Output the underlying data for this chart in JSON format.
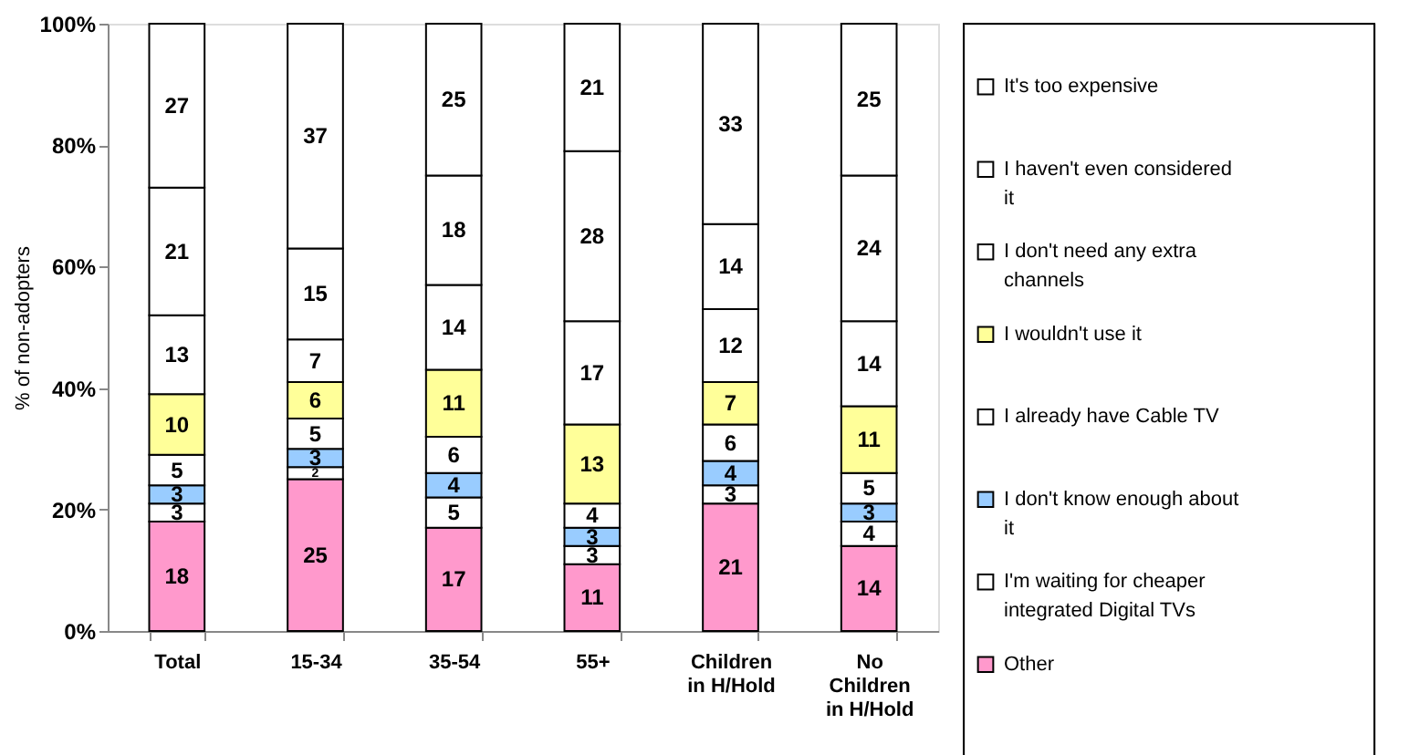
{
  "chart_data": {
    "type": "bar",
    "stacked": true,
    "ylabel": "% of non-adopters",
    "categories": [
      "Total",
      "15-34",
      "35-54",
      "55+",
      "Children in H/Hold",
      "No Children in H/Hold"
    ],
    "ylim": [
      0,
      100
    ],
    "yticks": [
      {
        "value": 0,
        "label": "0%"
      },
      {
        "value": 20,
        "label": "20%"
      },
      {
        "value": 40,
        "label": "40%"
      },
      {
        "value": 60,
        "label": "60%"
      },
      {
        "value": 80,
        "label": "80%"
      },
      {
        "value": 100,
        "label": "100%"
      }
    ],
    "grid": false,
    "legend": "right",
    "data_labels": true,
    "series": [
      {
        "name": "Other",
        "color": "#ff99cc",
        "values": [
          18,
          25,
          17,
          11,
          21,
          14
        ]
      },
      {
        "name": "I'm waiting for cheaper integrated Digital TVs",
        "color": "#ffffff",
        "values": [
          3,
          2,
          5,
          3,
          3,
          4
        ]
      },
      {
        "name": "I don't know enough about it",
        "color": "#99ccff",
        "values": [
          3,
          3,
          4,
          3,
          4,
          3
        ]
      },
      {
        "name": "I already have Cable TV",
        "color": "#ffffff",
        "values": [
          5,
          5,
          6,
          4,
          6,
          5
        ]
      },
      {
        "name": "I wouldn't use it",
        "color": "#ffff99",
        "values": [
          10,
          6,
          11,
          13,
          7,
          11
        ]
      },
      {
        "name": "I don't need any extra channels",
        "color": "#ffffff",
        "values": [
          13,
          7,
          14,
          17,
          12,
          14
        ]
      },
      {
        "name": "I haven't even considered it",
        "color": "#ffffff",
        "values": [
          21,
          15,
          18,
          28,
          14,
          24
        ]
      },
      {
        "name": "It's too expensive",
        "color": "#ffffff",
        "values": [
          27,
          37,
          25,
          21,
          33,
          25
        ]
      }
    ]
  }
}
